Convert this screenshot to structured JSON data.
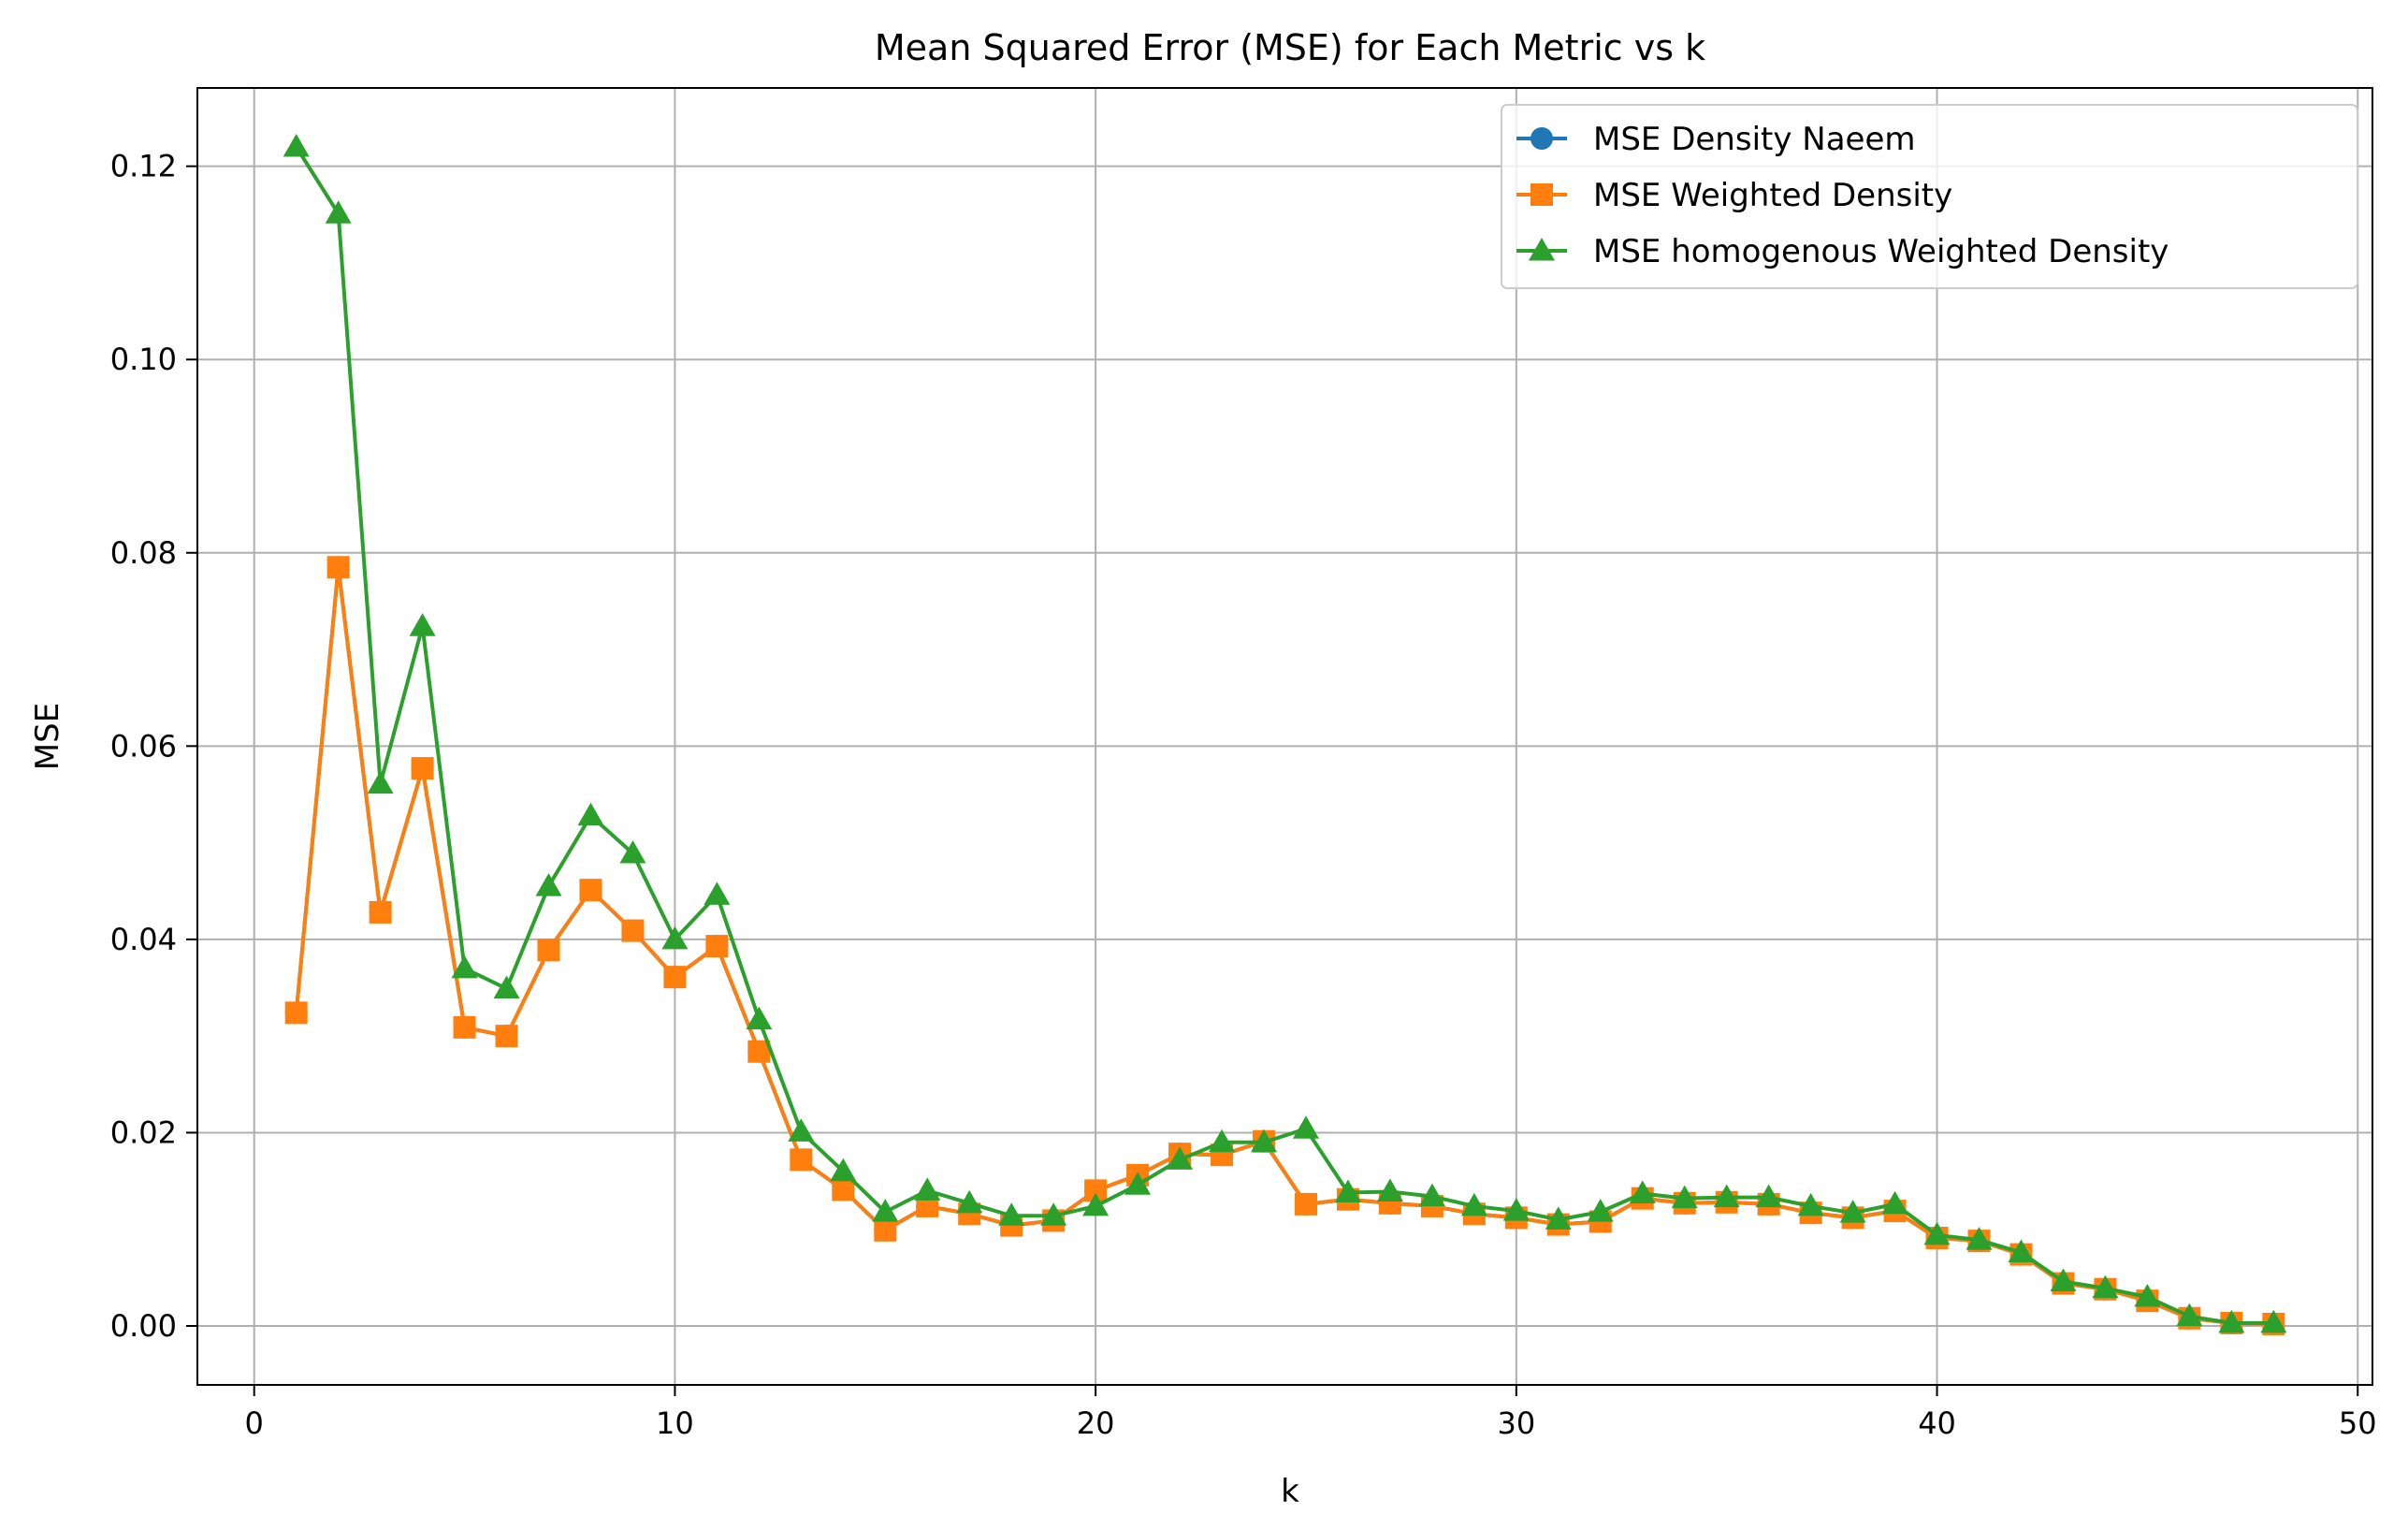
{
  "chart_data": {
    "type": "line",
    "title": "Mean Squared Error (MSE) for Each Metric vs k",
    "xlabel": "k",
    "ylabel": "MSE",
    "xlim": [
      -1.35,
      50.35
    ],
    "ylim": [
      -0.0061,
      0.1281
    ],
    "xticks": [
      0,
      10,
      20,
      30,
      40,
      50
    ],
    "yticks": [
      0.0,
      0.02,
      0.04,
      0.06,
      0.08,
      0.1,
      0.12
    ],
    "xtick_labels": [
      "0",
      "10",
      "20",
      "30",
      "40",
      "50"
    ],
    "ytick_labels": [
      "0.00",
      "0.02",
      "0.04",
      "0.06",
      "0.08",
      "0.10",
      "0.12"
    ],
    "grid": true,
    "legend_position": "upper right",
    "x": [
      1,
      2,
      3,
      4,
      5,
      6,
      7,
      8,
      9,
      10,
      11,
      12,
      13,
      14,
      15,
      16,
      17,
      18,
      19,
      20,
      21,
      22,
      23,
      24,
      25,
      26,
      27,
      28,
      29,
      30,
      31,
      32,
      33,
      34,
      35,
      36,
      37,
      38,
      39,
      40,
      41,
      42,
      43,
      44,
      45,
      46,
      47,
      48
    ],
    "series": [
      {
        "name": "MSE Density Naeem",
        "color": "#1f77b4",
        "marker": "circle",
        "values": [
          0.0324,
          0.0785,
          0.0428,
          0.0577,
          0.0309,
          0.03,
          0.0389,
          0.0451,
          0.0409,
          0.0361,
          0.0393,
          0.0284,
          0.0172,
          0.0141,
          0.0099,
          0.0124,
          0.0116,
          0.0104,
          0.0109,
          0.014,
          0.0156,
          0.0178,
          0.0177,
          0.0191,
          0.0126,
          0.0131,
          0.0127,
          0.0124,
          0.0116,
          0.0112,
          0.0105,
          0.0108,
          0.0132,
          0.0127,
          0.0128,
          0.0126,
          0.0117,
          0.0112,
          0.0119,
          0.0091,
          0.0088,
          0.0074,
          0.0044,
          0.0038,
          0.0026,
          0.0008,
          0.0003,
          0.0002
        ]
      },
      {
        "name": "MSE Weighted Density",
        "color": "#ff7f0e",
        "marker": "square",
        "values": [
          0.0324,
          0.0785,
          0.0428,
          0.0577,
          0.0309,
          0.03,
          0.0389,
          0.0451,
          0.0409,
          0.0361,
          0.0393,
          0.0284,
          0.0172,
          0.0141,
          0.0099,
          0.0124,
          0.0116,
          0.0104,
          0.0109,
          0.014,
          0.0156,
          0.0178,
          0.0177,
          0.0191,
          0.0126,
          0.0131,
          0.0127,
          0.0124,
          0.0116,
          0.0112,
          0.0105,
          0.0108,
          0.0132,
          0.0127,
          0.0128,
          0.0126,
          0.0117,
          0.0112,
          0.0119,
          0.0091,
          0.0088,
          0.0074,
          0.0044,
          0.0038,
          0.0026,
          0.0008,
          0.0003,
          0.0002
        ]
      },
      {
        "name": "MSE homogenous Weighted Density",
        "color": "#2ca02c",
        "marker": "triangle",
        "values": [
          0.122,
          0.1151,
          0.0561,
          0.0724,
          0.037,
          0.0349,
          0.0455,
          0.0528,
          0.0489,
          0.04,
          0.0446,
          0.0317,
          0.0201,
          0.016,
          0.0118,
          0.014,
          0.0127,
          0.0114,
          0.0114,
          0.0124,
          0.0146,
          0.0172,
          0.019,
          0.019,
          0.0204,
          0.0138,
          0.0139,
          0.0134,
          0.0124,
          0.0119,
          0.011,
          0.0118,
          0.0137,
          0.0132,
          0.0133,
          0.0133,
          0.0124,
          0.0117,
          0.0126,
          0.0094,
          0.0089,
          0.0076,
          0.0046,
          0.0039,
          0.003,
          0.001,
          0.0003,
          0.0003
        ]
      }
    ]
  }
}
